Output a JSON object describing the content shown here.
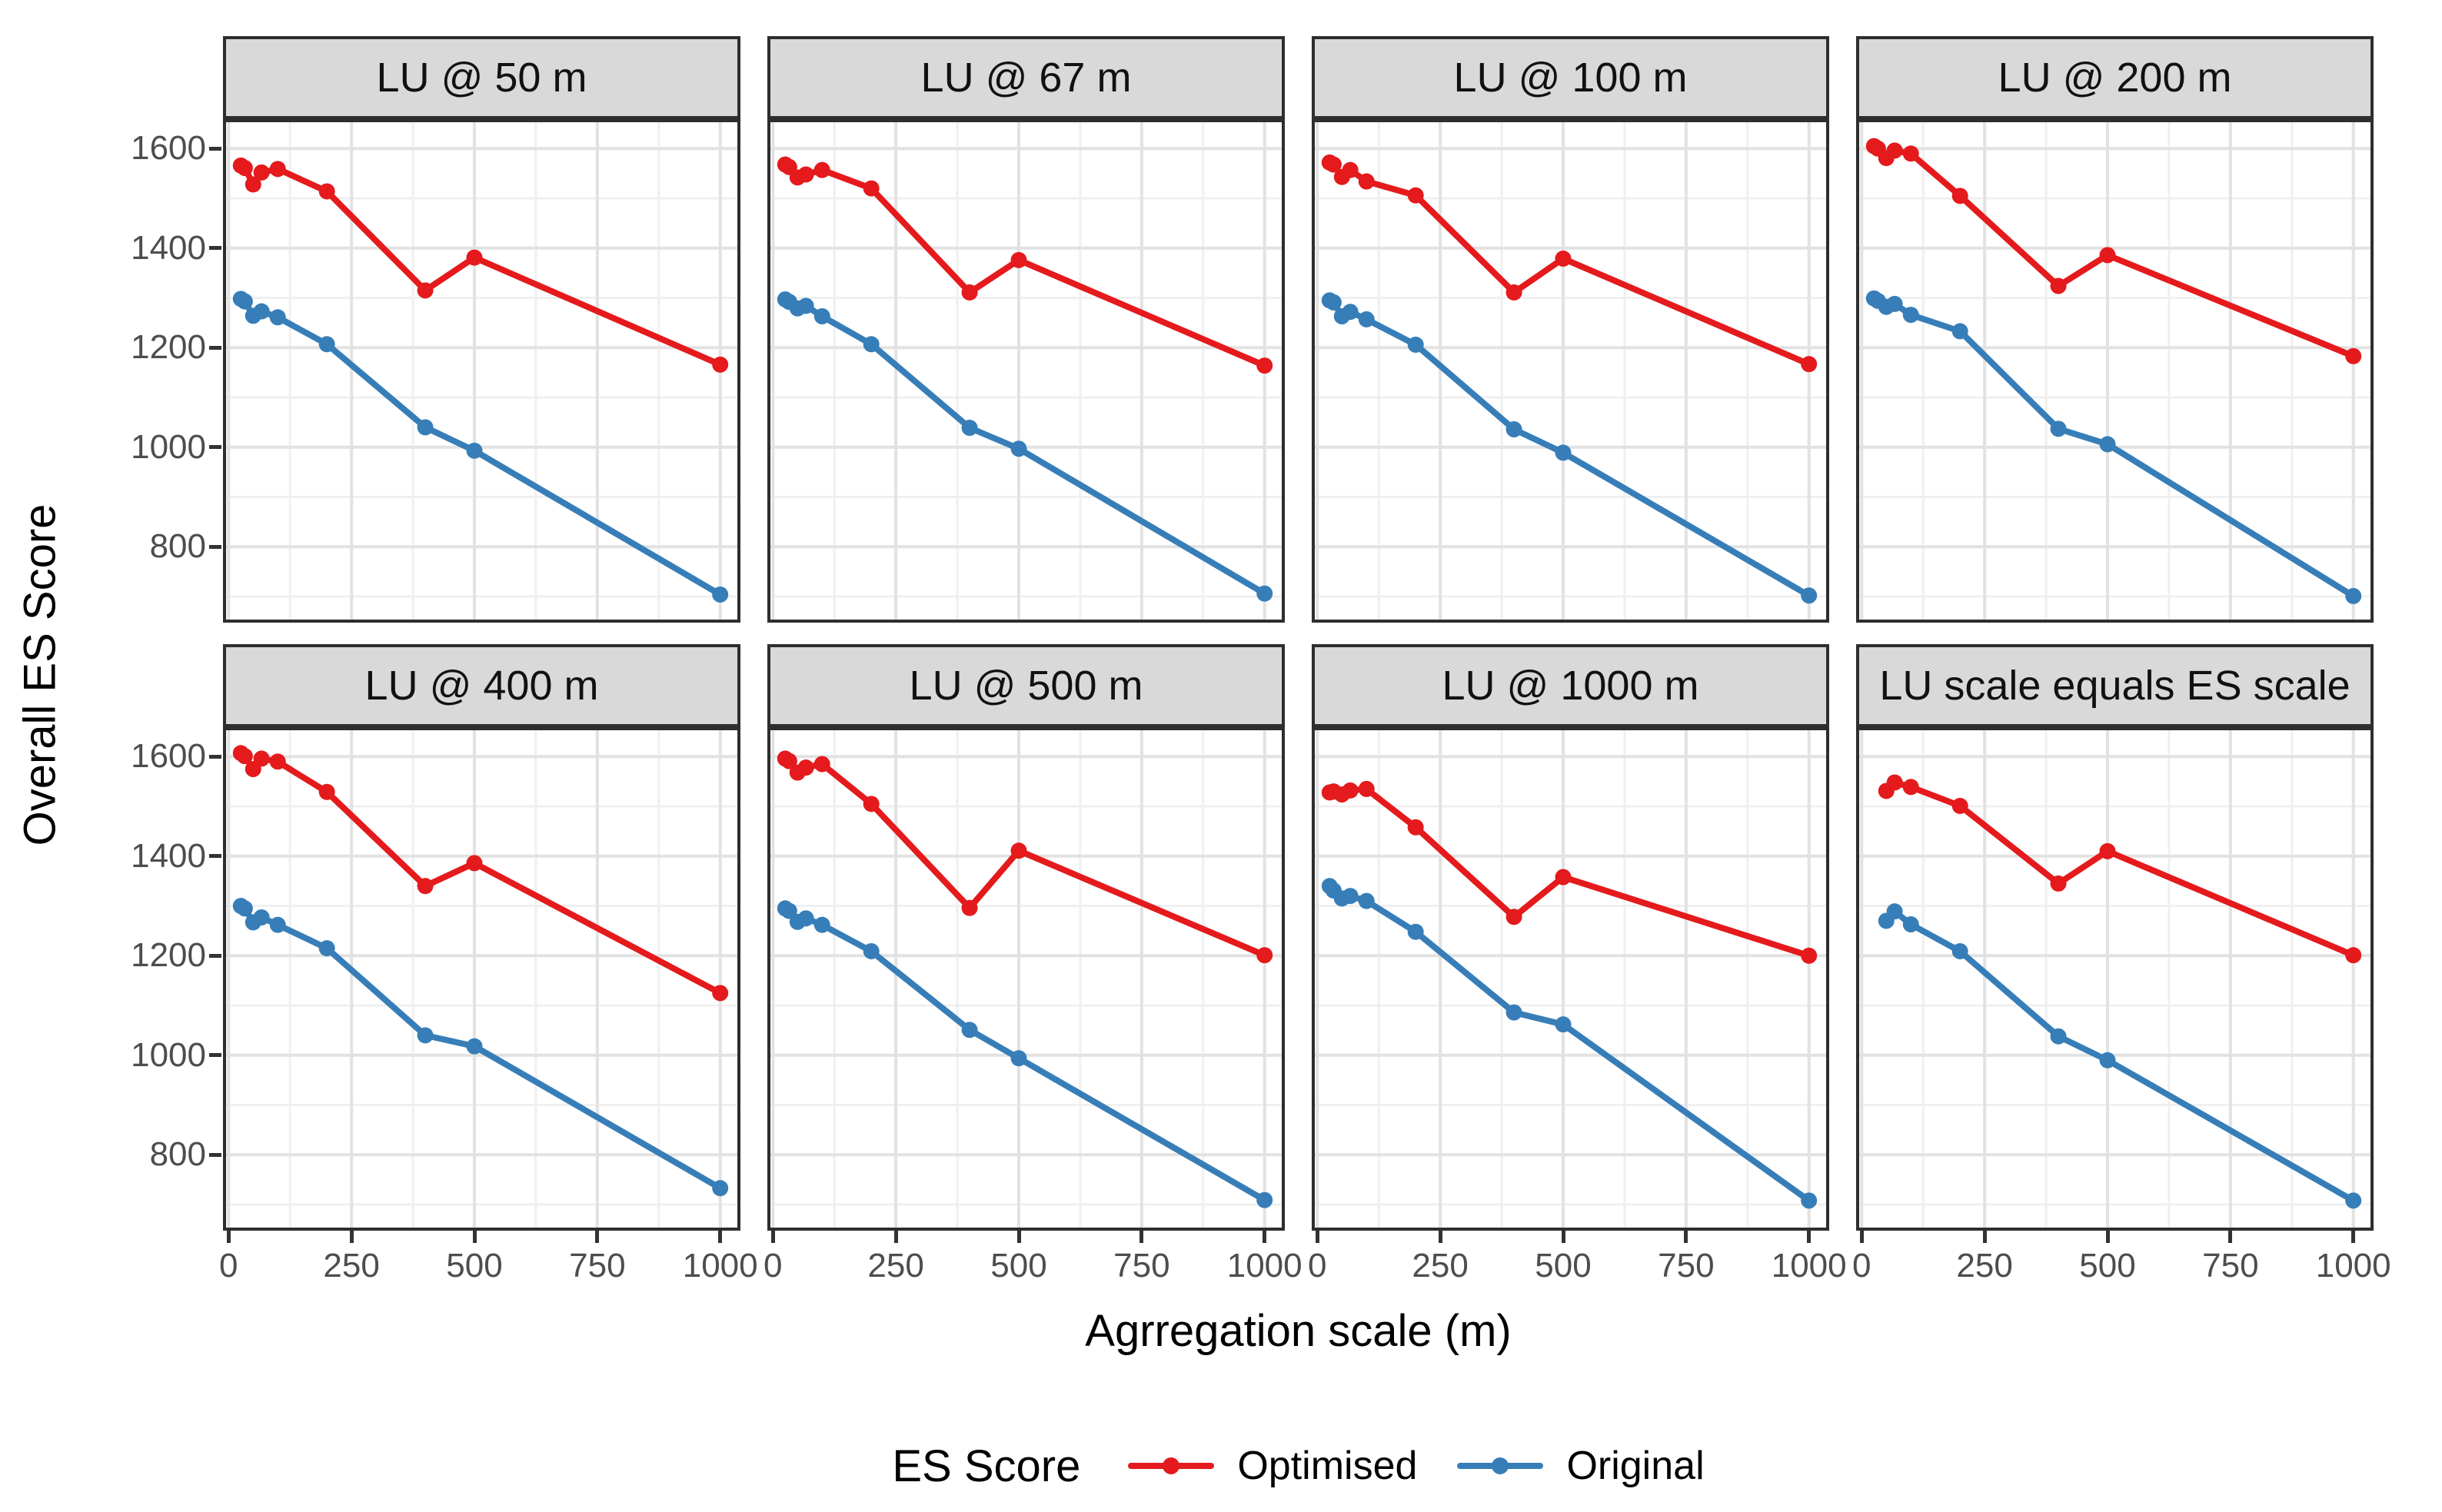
{
  "figure": {
    "y_axis_title": "Overall ES Score",
    "x_axis_title": "Agrregation scale (m)",
    "legend": {
      "title": "ES Score",
      "items": [
        {
          "label": "Optimised",
          "color": "#e41a1c"
        },
        {
          "label": "Original",
          "color": "#377eb8"
        }
      ]
    }
  },
  "axes": {
    "x_tick_labels": [
      "0",
      "250",
      "500",
      "750",
      "1000"
    ],
    "x_ticks": [
      0,
      250,
      500,
      750,
      1000
    ],
    "x_minor": [
      125,
      375,
      625,
      875
    ],
    "y_tick_labels": [
      "1600",
      "1400",
      "1200",
      "1000",
      "800"
    ],
    "y_ticks": [
      1600,
      1400,
      1200,
      1000,
      800
    ],
    "y_minor": [
      700,
      900,
      1100,
      1300,
      1500
    ],
    "grid": "on",
    "legend_position": "bottom"
  },
  "chart_data": {
    "type": "line",
    "title": "",
    "xlabel": "Agrregation scale (m)",
    "ylabel": "Overall ES Score",
    "xlim": [
      -12,
      1041
    ],
    "ylim": [
      648,
      1659
    ],
    "colors": {
      "Optimised": "#e41a1c",
      "Original": "#377eb8"
    },
    "facets": [
      {
        "title": "LU @ 50 m",
        "x": [
          25,
          33,
          50,
          67,
          100,
          200,
          400,
          500,
          1000
        ],
        "series": [
          {
            "name": "Optimised",
            "values": [
              1566,
              1561,
              1528,
              1552,
              1559,
              1514,
              1315,
              1381,
              1166
            ]
          },
          {
            "name": "Original",
            "values": [
              1298,
              1293,
              1264,
              1273,
              1261,
              1207,
              1040,
              993,
              704
            ]
          }
        ]
      },
      {
        "title": "LU @ 67 m",
        "x": [
          25,
          33,
          50,
          67,
          100,
          200,
          400,
          500,
          1000
        ],
        "series": [
          {
            "name": "Optimised",
            "values": [
              1568,
              1563,
              1542,
              1548,
              1557,
              1520,
              1311,
              1376,
              1164
            ]
          },
          {
            "name": "Original",
            "values": [
              1297,
              1292,
              1279,
              1284,
              1263,
              1207,
              1039,
              997,
              706
            ]
          }
        ]
      },
      {
        "title": "LU @ 100 m",
        "x": [
          25,
          33,
          50,
          67,
          100,
          200,
          400,
          500,
          1000
        ],
        "series": [
          {
            "name": "Optimised",
            "values": [
              1572,
              1568,
              1543,
              1557,
              1534,
              1506,
              1311,
              1379,
              1167
            ]
          },
          {
            "name": "Original",
            "values": [
              1295,
              1291,
              1263,
              1272,
              1257,
              1206,
              1036,
              989,
              702
            ]
          }
        ]
      },
      {
        "title": "LU @ 200 m",
        "x": [
          25,
          33,
          50,
          67,
          100,
          200,
          400,
          500,
          1000
        ],
        "series": [
          {
            "name": "Optimised",
            "values": [
              1605,
              1600,
              1581,
              1596,
              1590,
              1505,
              1324,
              1386,
              1183
            ]
          },
          {
            "name": "Original",
            "values": [
              1299,
              1294,
              1282,
              1288,
              1266,
              1233,
              1037,
              1006,
              701
            ]
          }
        ]
      },
      {
        "title": "LU @ 400 m",
        "x": [
          25,
          33,
          50,
          67,
          100,
          200,
          400,
          500,
          1000
        ],
        "series": [
          {
            "name": "Optimised",
            "values": [
              1607,
              1601,
              1575,
              1596,
              1590,
              1529,
              1340,
              1386,
              1125
            ]
          },
          {
            "name": "Original",
            "values": [
              1300,
              1295,
              1267,
              1277,
              1262,
              1215,
              1040,
              1018,
              733
            ]
          }
        ]
      },
      {
        "title": "LU @ 500 m",
        "x": [
          25,
          33,
          50,
          67,
          100,
          200,
          400,
          500,
          1000
        ],
        "series": [
          {
            "name": "Optimised",
            "values": [
              1596,
              1591,
              1568,
              1578,
              1585,
              1505,
              1296,
              1411,
              1201
            ]
          },
          {
            "name": "Original",
            "values": [
              1295,
              1290,
              1268,
              1275,
              1262,
              1209,
              1051,
              994,
              709
            ]
          }
        ]
      },
      {
        "title": "LU @ 1000 m",
        "x": [
          25,
          33,
          50,
          67,
          100,
          200,
          400,
          500,
          1000
        ],
        "series": [
          {
            "name": "Optimised",
            "values": [
              1528,
              1530,
              1524,
              1532,
              1535,
              1458,
              1278,
              1358,
              1200
            ]
          },
          {
            "name": "Original",
            "values": [
              1340,
              1331,
              1315,
              1320,
              1310,
              1248,
              1086,
              1062,
              708
            ]
          }
        ]
      },
      {
        "title": "LU scale equals ES scale",
        "x": [
          50,
          67,
          100,
          200,
          400,
          500,
          1000
        ],
        "series": [
          {
            "name": "Optimised",
            "values": [
              1531,
              1548,
              1539,
              1501,
              1345,
              1410,
              1201
            ]
          },
          {
            "name": "Original",
            "values": [
              1270,
              1289,
              1263,
              1209,
              1038,
              990,
              708
            ]
          }
        ]
      }
    ]
  }
}
